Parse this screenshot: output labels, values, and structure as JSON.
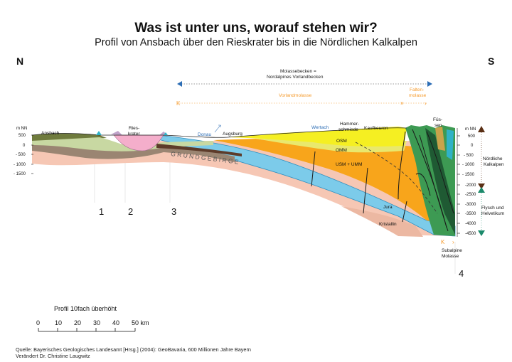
{
  "title": "Was ist unter uns, worauf stehen wir?",
  "subtitle": "Profil von Ansbach über den Rieskrater bis in die Nördlichen Kalkalpen",
  "directions": {
    "north": "N",
    "south": "S"
  },
  "basin": {
    "line1": "Molassebecken =",
    "line2": "Nordalpines Vorlandbecken"
  },
  "vorland": "Vorlandmolasse",
  "falten": {
    "line1": "Falten-",
    "line2": "molasse"
  },
  "places": {
    "ansbach": "Ansbach",
    "ries1": "Ries-",
    "ries2": "krater",
    "donau": "Donau",
    "augsburg": "Augsburg",
    "wertach": "Wertach",
    "hammer1": "Hammer-",
    "hammer2": "schmiede",
    "kaufbeuren": "Kaufbeuren",
    "fuessen1": "Füs-",
    "fuessen2": "sen"
  },
  "layers": {
    "osm": "OSM",
    "omm": "OMM",
    "usm": "USM  + UMM",
    "jura": "Jura",
    "kristallin": "Kristallin",
    "grundgebirge": "G R U N D G E B I R G E"
  },
  "left_axis": {
    "unit": "m NN",
    "ticks": [
      "500",
      "0",
      "- 500",
      "- 1000",
      "- 1500"
    ]
  },
  "right_axis": {
    "unit": "m NN",
    "ticks": [
      "500",
      "0",
      "- 500",
      "- 1000",
      "- 1500",
      "-2000",
      "-2500",
      "-3000",
      "-3500",
      "-4000",
      "-4500"
    ]
  },
  "zones": {
    "kalkalpen1": "Nördliche",
    "kalkalpen2": "Kalkalpen",
    "flysch1": "Flysch und",
    "flysch2": "Helvetikum"
  },
  "subalpine": {
    "line1": "Subalpine",
    "line2": "Molasse"
  },
  "markers": [
    "1",
    "2",
    "3",
    "4"
  ],
  "scale": {
    "title": "Profil 10fach überhöht",
    "ticks": [
      "0",
      "10",
      "20",
      "30",
      "40",
      "50 km"
    ]
  },
  "source": {
    "line1": "Quelle: Bayerisches Geologisches Landesamt [Hrsg.] (2004): GeoBavaria, 600 Millionen Jahre Bayern",
    "line2": "Verändert Dr. Christine Laugwitz"
  },
  "colors": {
    "grundgebirge": "#f6c7b4",
    "kristallin": "#ecb8a2",
    "jura": "#7ccbea",
    "jura_edge": "#2f8fc0",
    "usm": "#f8a51b",
    "omm": "#e9e86d",
    "osm": "#f5ef22",
    "trias": "#9a8572",
    "ries": "#f4aecb",
    "alps_green": "#3d9a53",
    "alps_dark": "#1f5a33",
    "arrow_blue": "#2c6db5",
    "arrow_orange": "#f59a2b",
    "marker_brown": "#5a2f14",
    "marker_green": "#1b8a6b"
  }
}
